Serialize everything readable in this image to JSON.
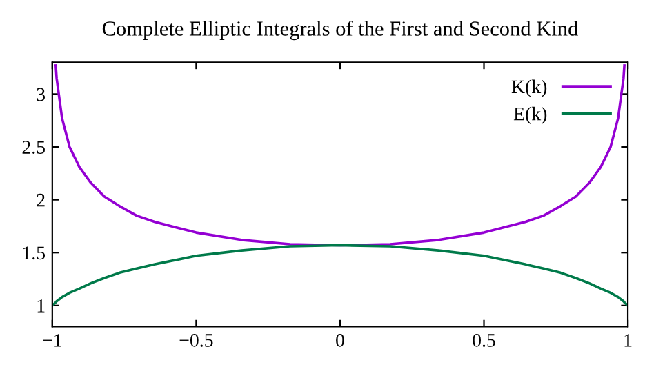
{
  "chart_data": {
    "type": "line",
    "title": "Complete Elliptic Integrals of the First and Second Kind",
    "x": [
      -1,
      -0.988,
      -0.985,
      -0.966,
      -0.94,
      -0.906,
      -0.866,
      -0.819,
      -0.766,
      -0.707,
      -0.643,
      -0.5,
      -0.342,
      -0.174,
      0,
      0.174,
      0.342,
      0.5,
      0.643,
      0.707,
      0.766,
      0.819,
      0.866,
      0.906,
      0.94,
      0.966,
      0.985,
      0.988,
      1
    ],
    "series": [
      {
        "name": "K(k)",
        "color": "#9400d3",
        "values": [
          null,
          3.27,
          3.15,
          2.77,
          2.5,
          2.31,
          2.16,
          2.03,
          1.94,
          1.85,
          1.79,
          1.69,
          1.62,
          1.58,
          1.57,
          1.58,
          1.62,
          1.69,
          1.79,
          1.85,
          1.94,
          2.03,
          2.16,
          2.31,
          2.5,
          2.77,
          3.15,
          3.27,
          null
        ]
      },
      {
        "name": "E(k)",
        "color": "#007a4a",
        "values": [
          1.0,
          1.03,
          1.04,
          1.08,
          1.12,
          1.16,
          1.21,
          1.26,
          1.31,
          1.35,
          1.39,
          1.47,
          1.52,
          1.56,
          1.57,
          1.56,
          1.52,
          1.47,
          1.39,
          1.35,
          1.31,
          1.26,
          1.21,
          1.16,
          1.12,
          1.08,
          1.04,
          1.03,
          1.0
        ]
      }
    ],
    "xlim": [
      -1,
      1
    ],
    "ylim": [
      0.8,
      3.3
    ],
    "xticks": [
      {
        "value": -1,
        "label": "−1"
      },
      {
        "value": -0.5,
        "label": "−0.5"
      },
      0,
      0.5,
      1
    ],
    "yticks": [
      1,
      1.5,
      2,
      2.5,
      3
    ],
    "grid": false,
    "legend": "top right",
    "line_style": "solid",
    "marker": "none"
  }
}
